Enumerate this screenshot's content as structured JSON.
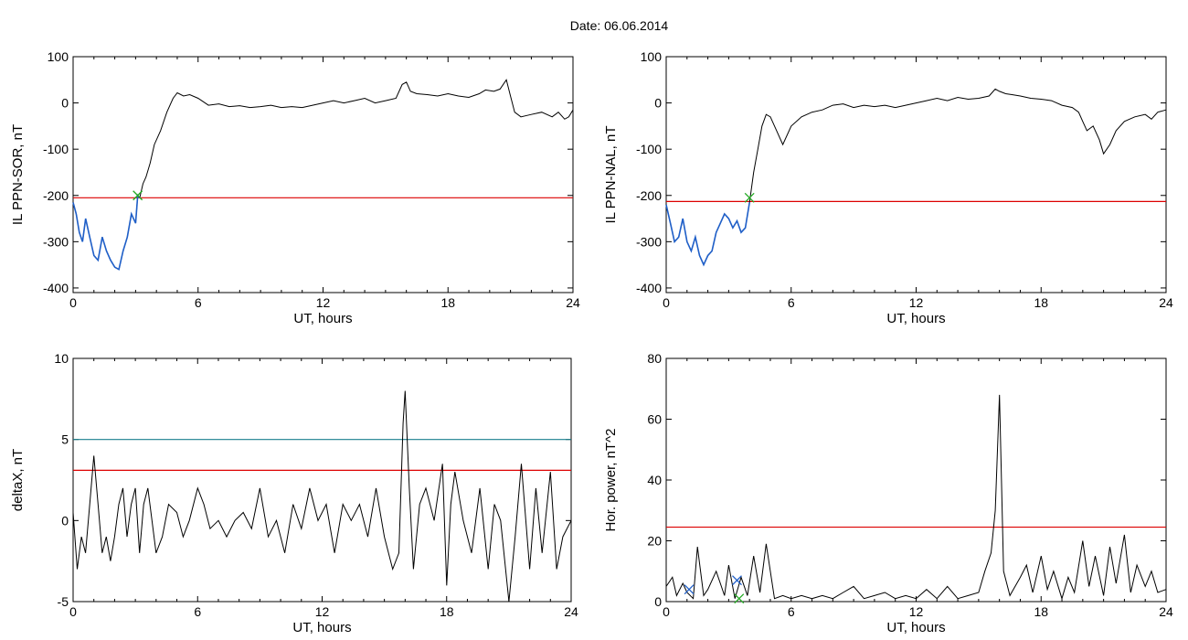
{
  "title": "Date:  06.06.2014",
  "colors": {
    "axis": "#000000",
    "trace": "#000000",
    "threshold_red": "#dd0000",
    "threshold_teal": "#1a7f8e",
    "highlight_blue": "#1f5fc8",
    "marker_green": "#22aa22",
    "marker_blue": "#1f5fc8"
  },
  "chart_data": [
    {
      "type": "line",
      "xlabel": "UT, hours",
      "ylabel": "IL PPN-SOR, nT",
      "xlim": [
        0,
        24
      ],
      "ylim": [
        -410,
        100
      ],
      "xticks": [
        0,
        6,
        12,
        18,
        24
      ],
      "yticks": [
        100,
        0,
        -100,
        -200,
        -300,
        -400
      ],
      "grid": false,
      "thresholds": [
        {
          "y": -205,
          "color": "red"
        }
      ],
      "highlight_range": [
        0,
        3.2
      ],
      "markers": [
        {
          "x": 3.1,
          "y": -200,
          "symbol": "x",
          "color": "green"
        }
      ],
      "series": [
        {
          "x": [
            0,
            0.15,
            0.3,
            0.45,
            0.6,
            0.8,
            1.0,
            1.2,
            1.4,
            1.6,
            1.8,
            2.0,
            2.2,
            2.4,
            2.6,
            2.8,
            3.0,
            3.1,
            3.2,
            3.35,
            3.5,
            3.7,
            3.9,
            4.2,
            4.5,
            4.8,
            5.0,
            5.3,
            5.6,
            6.0,
            6.5,
            7.0,
            7.5,
            8.0,
            8.5,
            9.0,
            9.5,
            10.0,
            10.5,
            11.0,
            11.5,
            12.0,
            12.5,
            13.0,
            13.5,
            14.0,
            14.5,
            15.0,
            15.5,
            15.8,
            16.0,
            16.2,
            16.5,
            17.0,
            17.5,
            18.0,
            18.5,
            19.0,
            19.5,
            19.8,
            20.2,
            20.5,
            20.8,
            21.0,
            21.2,
            21.5,
            22.0,
            22.5,
            23.0,
            23.3,
            23.6,
            23.8,
            24.0
          ],
          "y": [
            -215,
            -240,
            -280,
            -300,
            -250,
            -290,
            -330,
            -340,
            -290,
            -320,
            -340,
            -355,
            -360,
            -320,
            -290,
            -240,
            -260,
            -200,
            -205,
            -175,
            -160,
            -130,
            -90,
            -60,
            -20,
            10,
            22,
            15,
            18,
            10,
            -5,
            -2,
            -8,
            -6,
            -10,
            -8,
            -5,
            -10,
            -8,
            -10,
            -5,
            0,
            5,
            0,
            5,
            10,
            0,
            5,
            10,
            40,
            45,
            25,
            20,
            18,
            15,
            20,
            15,
            12,
            20,
            28,
            25,
            30,
            50,
            15,
            -20,
            -30,
            -25,
            -20,
            -30,
            -20,
            -35,
            -30,
            -15
          ]
        }
      ]
    },
    {
      "type": "line",
      "xlabel": "UT, hours",
      "ylabel": "IL PPN-NAL, nT",
      "xlim": [
        0,
        24
      ],
      "ylim": [
        -410,
        100
      ],
      "xticks": [
        0,
        6,
        12,
        18,
        24
      ],
      "yticks": [
        100,
        0,
        -100,
        -200,
        -300,
        -400
      ],
      "grid": false,
      "thresholds": [
        {
          "y": -213,
          "color": "red"
        }
      ],
      "highlight_range": [
        0,
        4.0
      ],
      "markers": [
        {
          "x": 4.0,
          "y": -205,
          "symbol": "x",
          "color": "green"
        }
      ],
      "series": [
        {
          "x": [
            0,
            0.2,
            0.4,
            0.6,
            0.8,
            1.0,
            1.2,
            1.4,
            1.6,
            1.8,
            2.0,
            2.2,
            2.4,
            2.6,
            2.8,
            3.0,
            3.2,
            3.4,
            3.6,
            3.8,
            4.0,
            4.2,
            4.4,
            4.6,
            4.8,
            5.0,
            5.3,
            5.6,
            6.0,
            6.5,
            7.0,
            7.5,
            8.0,
            8.5,
            9.0,
            9.5,
            10.0,
            10.5,
            11.0,
            11.5,
            12.0,
            12.5,
            13.0,
            13.5,
            14.0,
            14.5,
            15.0,
            15.5,
            15.8,
            16.0,
            16.3,
            16.6,
            17.0,
            17.5,
            18.0,
            18.5,
            19.0,
            19.5,
            19.8,
            20.0,
            20.2,
            20.5,
            20.8,
            21.0,
            21.3,
            21.6,
            22.0,
            22.5,
            23.0,
            23.3,
            23.6,
            24.0
          ],
          "y": [
            -220,
            -260,
            -300,
            -290,
            -250,
            -300,
            -320,
            -290,
            -330,
            -350,
            -330,
            -320,
            -280,
            -260,
            -240,
            -250,
            -270,
            -255,
            -280,
            -270,
            -215,
            -150,
            -100,
            -50,
            -25,
            -30,
            -60,
            -90,
            -50,
            -30,
            -20,
            -15,
            -5,
            -2,
            -10,
            -5,
            -8,
            -5,
            -10,
            -5,
            0,
            5,
            10,
            5,
            12,
            8,
            10,
            15,
            30,
            25,
            20,
            18,
            15,
            10,
            8,
            5,
            -5,
            -10,
            -20,
            -40,
            -60,
            -50,
            -80,
            -110,
            -90,
            -60,
            -40,
            -30,
            -25,
            -35,
            -20,
            -15
          ]
        }
      ]
    },
    {
      "type": "line",
      "xlabel": "UT, hours",
      "ylabel": "deltaX, nT",
      "xlim": [
        0,
        24
      ],
      "ylim": [
        -5,
        10
      ],
      "xticks": [
        0,
        6,
        12,
        18,
        24
      ],
      "yticks": [
        10,
        5,
        0,
        -5
      ],
      "grid": false,
      "thresholds": [
        {
          "y": 5.0,
          "color": "teal"
        },
        {
          "y": 3.1,
          "color": "red"
        }
      ],
      "series": [
        {
          "x": [
            0,
            0.2,
            0.4,
            0.6,
            0.8,
            1.0,
            1.2,
            1.4,
            1.6,
            1.8,
            2.0,
            2.2,
            2.4,
            2.6,
            2.8,
            3.0,
            3.2,
            3.4,
            3.6,
            3.8,
            4.0,
            4.3,
            4.6,
            5.0,
            5.3,
            5.6,
            6.0,
            6.3,
            6.6,
            7.0,
            7.4,
            7.8,
            8.2,
            8.6,
            9.0,
            9.4,
            9.8,
            10.2,
            10.6,
            11.0,
            11.4,
            11.8,
            12.2,
            12.6,
            13.0,
            13.4,
            13.8,
            14.2,
            14.6,
            15.0,
            15.4,
            15.7,
            15.9,
            16.0,
            16.2,
            16.4,
            16.7,
            17.0,
            17.4,
            17.8,
            18.0,
            18.2,
            18.4,
            18.8,
            19.2,
            19.6,
            20.0,
            20.3,
            20.6,
            21.0,
            21.3,
            21.6,
            22.0,
            22.3,
            22.6,
            23.0,
            23.3,
            23.6,
            24.0
          ],
          "y": [
            0.5,
            -3,
            -1,
            -2,
            1,
            4,
            1,
            -2,
            -1,
            -2.5,
            -1,
            1,
            2,
            -1,
            1,
            2,
            -2,
            1,
            2,
            0,
            -2,
            -1,
            1,
            0.5,
            -1,
            0,
            2,
            1,
            -0.5,
            0,
            -1,
            0,
            0.5,
            -0.5,
            2,
            -1,
            0,
            -2,
            1,
            -0.5,
            2,
            0,
            1,
            -2,
            1,
            0,
            1,
            -1,
            2,
            -1,
            -3,
            -2,
            6,
            8,
            2,
            -3,
            1,
            2,
            0,
            3.5,
            -4,
            1,
            3,
            0,
            -2,
            2,
            -3,
            1,
            0,
            -5,
            -1,
            3.5,
            -3,
            2,
            -2,
            3,
            -3,
            -1,
            0
          ]
        }
      ]
    },
    {
      "type": "line",
      "xlabel": "UT, hours",
      "ylabel": "Hor. power, nT^2",
      "xlim": [
        0,
        24
      ],
      "ylim": [
        0,
        80
      ],
      "xticks": [
        0,
        6,
        12,
        18,
        24
      ],
      "yticks": [
        80,
        60,
        40,
        20,
        0
      ],
      "grid": false,
      "thresholds": [
        {
          "y": 24.5,
          "color": "red"
        }
      ],
      "markers": [
        {
          "x": 1.1,
          "y": 4,
          "symbol": "x",
          "color": "blue"
        },
        {
          "x": 3.4,
          "y": 7,
          "symbol": "x",
          "color": "blue"
        },
        {
          "x": 3.5,
          "y": 1,
          "symbol": "x",
          "color": "green"
        }
      ],
      "series": [
        {
          "x": [
            0,
            0.3,
            0.5,
            0.8,
            1.0,
            1.3,
            1.5,
            1.8,
            2.0,
            2.4,
            2.8,
            3.0,
            3.3,
            3.6,
            3.9,
            4.2,
            4.5,
            4.8,
            5.2,
            5.6,
            6.0,
            6.5,
            7.0,
            7.5,
            8.0,
            8.5,
            9.0,
            9.5,
            10.0,
            10.5,
            11.0,
            11.5,
            12.0,
            12.5,
            13.0,
            13.5,
            14.0,
            14.5,
            15.0,
            15.3,
            15.6,
            15.8,
            16.0,
            16.2,
            16.5,
            17.0,
            17.3,
            17.6,
            18.0,
            18.3,
            18.6,
            19.0,
            19.3,
            19.6,
            20.0,
            20.3,
            20.6,
            21.0,
            21.3,
            21.6,
            22.0,
            22.3,
            22.6,
            23.0,
            23.3,
            23.6,
            24.0
          ],
          "y": [
            5,
            8,
            2,
            6,
            3,
            1,
            18,
            2,
            4,
            10,
            2,
            12,
            1,
            8,
            2,
            15,
            3,
            19,
            1,
            2,
            1,
            2,
            1,
            2,
            1,
            3,
            5,
            1,
            2,
            3,
            1,
            2,
            1,
            4,
            1,
            5,
            1,
            2,
            3,
            10,
            16,
            30,
            68,
            10,
            2,
            8,
            12,
            3,
            15,
            4,
            10,
            1,
            8,
            3,
            20,
            5,
            15,
            2,
            18,
            6,
            22,
            3,
            12,
            5,
            10,
            3,
            4
          ]
        }
      ]
    }
  ]
}
